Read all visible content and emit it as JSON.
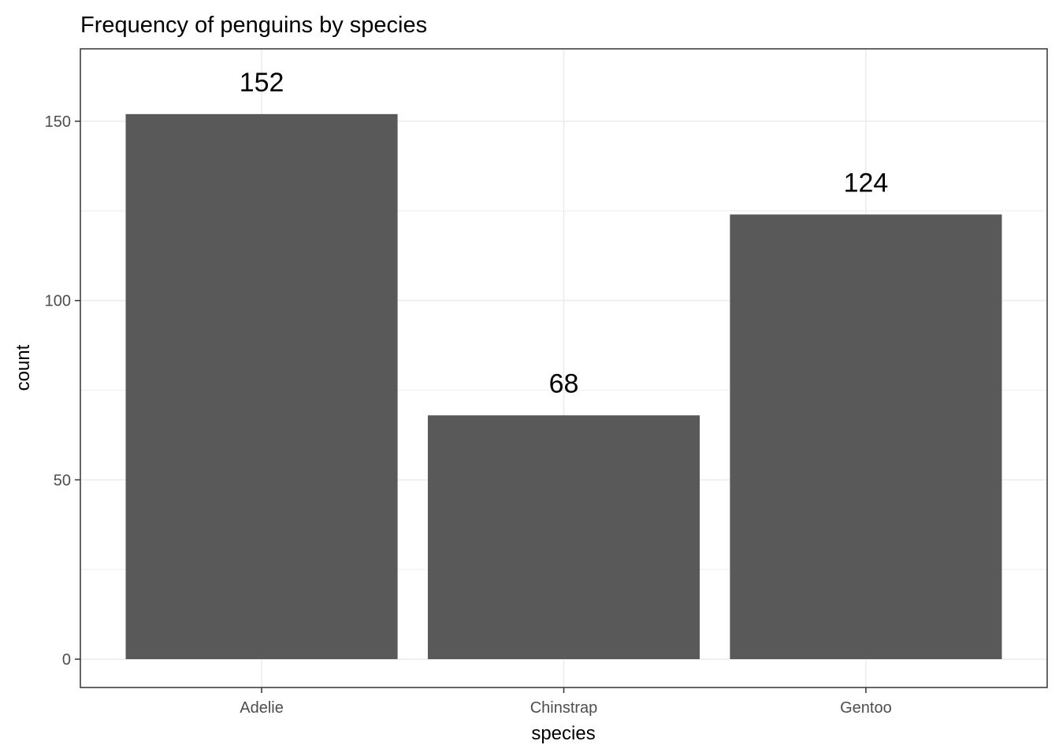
{
  "chart_data": {
    "type": "bar",
    "title": "Frequency of penguins by species",
    "xlabel": "species",
    "ylabel": "count",
    "categories": [
      "Adelie",
      "Chinstrap",
      "Gentoo"
    ],
    "values": [
      152,
      68,
      124
    ],
    "data_labels": [
      "152",
      "68",
      "124"
    ],
    "ylim": [
      -7.9,
      170.2
    ],
    "yticks": [
      0,
      50,
      100,
      150
    ],
    "ytick_labels": [
      "0",
      "50",
      "100",
      "150"
    ],
    "grid": true,
    "legend": "none",
    "bar_color": "#595959",
    "grid_color": "#ebebeb"
  }
}
